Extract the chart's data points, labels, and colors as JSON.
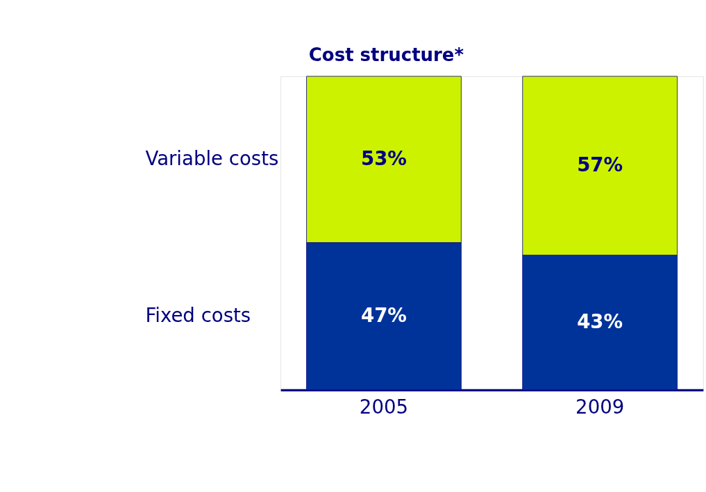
{
  "chart_data": {
    "type": "bar",
    "title": "Cost structure*",
    "categories": [
      "2005",
      "2009"
    ],
    "stacked": true,
    "series": [
      {
        "name": "Fixed costs",
        "color": "#003399",
        "values": [
          47,
          43
        ],
        "value_labels": [
          "47%",
          "43%"
        ]
      },
      {
        "name": "Variable costs",
        "color": "#ccf200",
        "values": [
          53,
          57
        ],
        "value_labels": [
          "53%",
          "57%"
        ]
      }
    ]
  }
}
